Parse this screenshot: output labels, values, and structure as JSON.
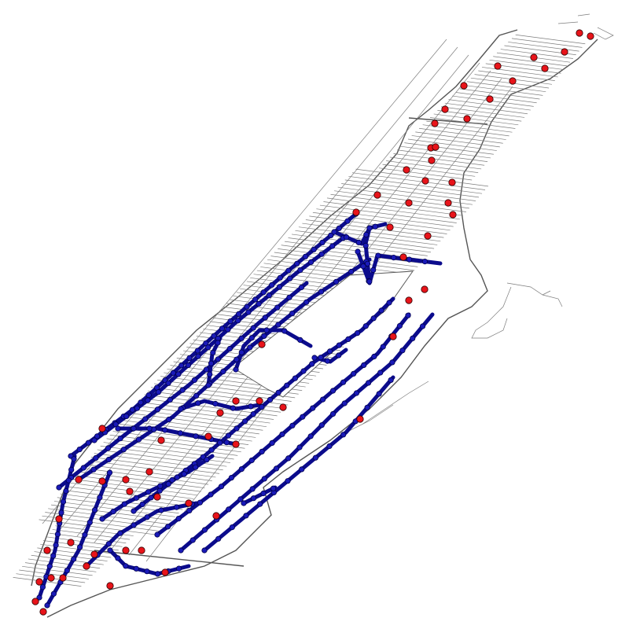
{
  "map": {
    "background": "#ffffff",
    "colors": {
      "street": "#7d7d7d",
      "street_major": "#555555",
      "route_line": "#0b0b8c",
      "route_node_fill": "#1a1ab8",
      "station_fill": "#e8141a"
    },
    "layers": [
      "street-network",
      "route-network",
      "route-nodes",
      "station-markers"
    ]
  }
}
